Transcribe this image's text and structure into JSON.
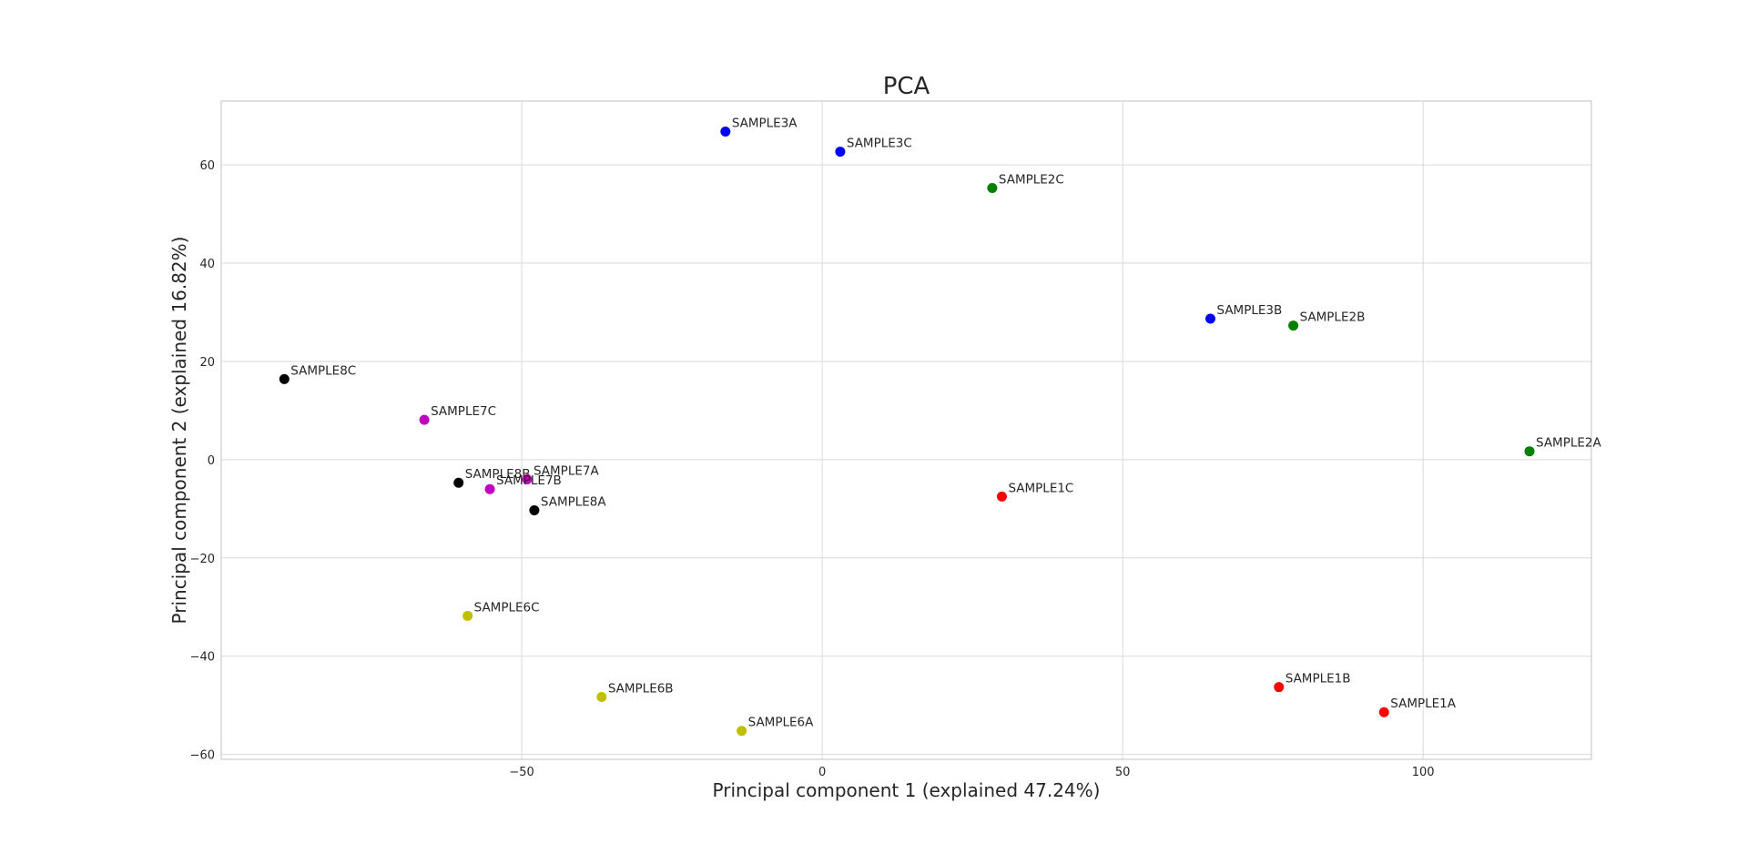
{
  "chart_data": {
    "type": "scatter",
    "title": "PCA",
    "xlabel": "Principal component 1 (explained 47.24%)",
    "ylabel": "Principal component 2 (explained 16.82%)",
    "xlim": [
      -100,
      128
    ],
    "ylim": [
      -61,
      73
    ],
    "xticks": [
      -50,
      0,
      50,
      100
    ],
    "yticks": [
      -60,
      -40,
      -20,
      0,
      20,
      40,
      60
    ],
    "xtick_labels": [
      "−50",
      "0",
      "50",
      "100"
    ],
    "ytick_labels": [
      "−60",
      "−40",
      "−20",
      "0",
      "20",
      "40",
      "60"
    ],
    "grid": true,
    "style": "seaborn-whitegrid",
    "points": [
      {
        "label": "SAMPLE3A",
        "x": -16.1,
        "y": 66.8,
        "color": "#0000ff"
      },
      {
        "label": "SAMPLE3C",
        "x": 3.0,
        "y": 62.7,
        "color": "#0000ff"
      },
      {
        "label": "SAMPLE2C",
        "x": 28.3,
        "y": 55.3,
        "color": "#008000"
      },
      {
        "label": "SAMPLE3B",
        "x": 64.6,
        "y": 28.7,
        "color": "#0000ff"
      },
      {
        "label": "SAMPLE2B",
        "x": 78.4,
        "y": 27.3,
        "color": "#008000"
      },
      {
        "label": "SAMPLE2A",
        "x": 117.7,
        "y": 1.7,
        "color": "#008000"
      },
      {
        "label": "SAMPLE8C",
        "x": -89.5,
        "y": 16.4,
        "color": "#000000"
      },
      {
        "label": "SAMPLE7C",
        "x": -66.2,
        "y": 8.1,
        "color": "#bf00bf"
      },
      {
        "label": "SAMPLE8B",
        "x": -60.5,
        "y": -4.7,
        "color": "#000000"
      },
      {
        "label": "SAMPLE7A",
        "x": -49.1,
        "y": -4.0,
        "color": "#bf00bf"
      },
      {
        "label": "SAMPLE7B",
        "x": -55.3,
        "y": -6.0,
        "color": "#bf00bf"
      },
      {
        "label": "SAMPLE8A",
        "x": -47.9,
        "y": -10.3,
        "color": "#000000"
      },
      {
        "label": "SAMPLE1C",
        "x": 29.9,
        "y": -7.5,
        "color": "#ff0000"
      },
      {
        "label": "SAMPLE6C",
        "x": -59.0,
        "y": -31.8,
        "color": "#bfbf00"
      },
      {
        "label": "SAMPLE6B",
        "x": -36.7,
        "y": -48.3,
        "color": "#bfbf00"
      },
      {
        "label": "SAMPLE6A",
        "x": -13.4,
        "y": -55.2,
        "color": "#bfbf00"
      },
      {
        "label": "SAMPLE1B",
        "x": 76.0,
        "y": -46.3,
        "color": "#ff0000"
      },
      {
        "label": "SAMPLE1A",
        "x": 93.5,
        "y": -51.4,
        "color": "#ff0000"
      }
    ]
  }
}
